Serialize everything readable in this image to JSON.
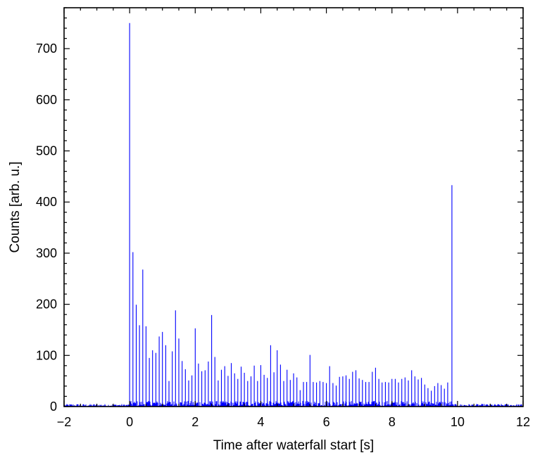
{
  "chart_data": {
    "type": "line",
    "title": "",
    "xlabel": "Time after waterfall start [s]",
    "ylabel": "Counts [arb. u.]",
    "xlim": [
      -2,
      12
    ],
    "ylim": [
      0,
      780
    ],
    "xticks": [
      -2,
      0,
      2,
      4,
      6,
      8,
      10,
      12
    ],
    "xtick_labels": [
      "−2",
      "0",
      "2",
      "4",
      "6",
      "8",
      "10",
      "12"
    ],
    "yticks": [
      0,
      100,
      200,
      300,
      400,
      500,
      600,
      700
    ],
    "ytick_labels": [
      "0",
      "100",
      "200",
      "300",
      "400",
      "500",
      "600",
      "700"
    ],
    "grid": false,
    "series": [
      {
        "color": "#0000ff",
        "baseline_counts": 5,
        "spikes": {
          "x": [
            0.0,
            0.1,
            0.2,
            0.3,
            0.4,
            0.5,
            0.6,
            0.7,
            0.8,
            0.9,
            1.0,
            1.1,
            1.2,
            1.3,
            1.4,
            1.5,
            1.6,
            1.7,
            1.8,
            1.9,
            2.0,
            2.1,
            2.2,
            2.3,
            2.4,
            2.5,
            2.6,
            2.7,
            2.8,
            2.9,
            3.0,
            3.1,
            3.2,
            3.3,
            3.4,
            3.5,
            3.6,
            3.7,
            3.8,
            3.9,
            4.0,
            4.1,
            4.2,
            4.3,
            4.4,
            4.5,
            4.6,
            4.7,
            4.8,
            4.9,
            5.0,
            5.1,
            5.2,
            5.3,
            5.4,
            5.5,
            5.6,
            5.7,
            5.8,
            5.9,
            6.0,
            6.1,
            6.2,
            6.3,
            6.4,
            6.5,
            6.6,
            6.7,
            6.8,
            6.9,
            7.0,
            7.1,
            7.2,
            7.3,
            7.4,
            7.5,
            7.6,
            7.7,
            7.8,
            7.9,
            8.0,
            8.1,
            8.2,
            8.3,
            8.4,
            8.5,
            8.6,
            8.7,
            8.8,
            8.9,
            9.0,
            9.1,
            9.2,
            9.3,
            9.4,
            9.5,
            9.6,
            9.7,
            9.83
          ],
          "y": [
            750,
            302,
            199,
            159,
            268,
            157,
            95,
            110,
            105,
            137,
            146,
            120,
            50,
            108,
            188,
            133,
            89,
            73,
            51,
            61,
            153,
            84,
            69,
            71,
            88,
            179,
            97,
            51,
            72,
            79,
            60,
            85,
            65,
            54,
            78,
            66,
            50,
            59,
            80,
            50,
            81,
            62,
            56,
            120,
            67,
            110,
            82,
            50,
            72,
            52,
            65,
            57,
            32,
            48,
            48,
            101,
            48,
            47,
            50,
            48,
            46,
            79,
            46,
            41,
            58,
            59,
            61,
            54,
            68,
            71,
            55,
            52,
            48,
            48,
            68,
            76,
            54,
            47,
            48,
            47,
            54,
            54,
            47,
            54,
            57,
            51,
            71,
            59,
            53,
            56,
            43,
            36,
            31,
            40,
            46,
            42,
            35,
            47,
            433
          ]
        }
      }
    ]
  }
}
